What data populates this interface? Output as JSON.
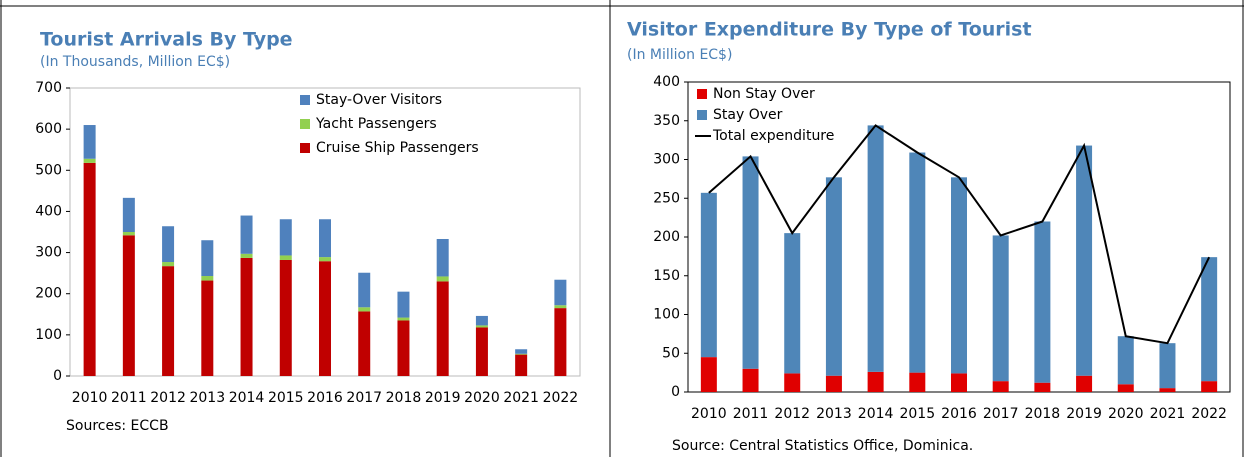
{
  "chart_data": [
    {
      "type": "bar",
      "title": "Tourist Arrivals By Type",
      "subtitle": "(In Thousands, Million EC$)",
      "categories": [
        "2010",
        "2011",
        "2012",
        "2013",
        "2014",
        "2015",
        "2016",
        "2017",
        "2018",
        "2019",
        "2020",
        "2021",
        "2022"
      ],
      "series": [
        {
          "name": "Cruise Ship Passengers",
          "color": "#c00000",
          "values": [
            518,
            342,
            267,
            232,
            287,
            282,
            279,
            157,
            135,
            230,
            118,
            52,
            165
          ]
        },
        {
          "name": "Yacht Passengers",
          "color": "#92d050",
          "values": [
            10,
            8,
            10,
            11,
            10,
            11,
            10,
            10,
            7,
            12,
            5,
            2,
            7
          ]
        },
        {
          "name": "Stay-Over Visitors",
          "color": "#4f81bd",
          "values": [
            82,
            83,
            87,
            87,
            93,
            88,
            92,
            84,
            63,
            91,
            23,
            11,
            62
          ]
        }
      ],
      "stacked": true,
      "ylim": [
        0,
        700
      ],
      "yticks": [
        0,
        100,
        200,
        300,
        400,
        500,
        600,
        700
      ],
      "legend": "upper right",
      "source": "Sources: ECCB"
    },
    {
      "type": "bar",
      "title": "Visitor Expenditure By Type of Tourist",
      "subtitle": "(In Million EC$)",
      "categories": [
        "2010",
        "2011",
        "2012",
        "2013",
        "2014",
        "2015",
        "2016",
        "2017",
        "2018",
        "2019",
        "2020",
        "2021",
        "2022"
      ],
      "series": [
        {
          "name": "Non Stay Over",
          "color": "#e00000",
          "values": [
            45,
            30,
            24,
            21,
            26,
            25,
            24,
            14,
            12,
            21,
            10,
            5,
            14
          ]
        },
        {
          "name": "Stay Over",
          "color": "#4f86b8",
          "values": [
            212,
            274,
            181,
            256,
            318,
            284,
            253,
            188,
            208,
            297,
            62,
            58,
            160
          ]
        },
        {
          "name": "Total expenditure",
          "color": "#000000",
          "type": "line",
          "values": [
            257,
            304,
            205,
            277,
            344,
            309,
            277,
            202,
            220,
            318,
            72,
            63,
            174
          ]
        }
      ],
      "stacked": true,
      "ylim": [
        0,
        400
      ],
      "yticks": [
        0,
        50,
        100,
        150,
        200,
        250,
        300,
        350,
        400
      ],
      "legend": "upper left",
      "source": "Source: Central Statistics Office, Dominica."
    }
  ]
}
